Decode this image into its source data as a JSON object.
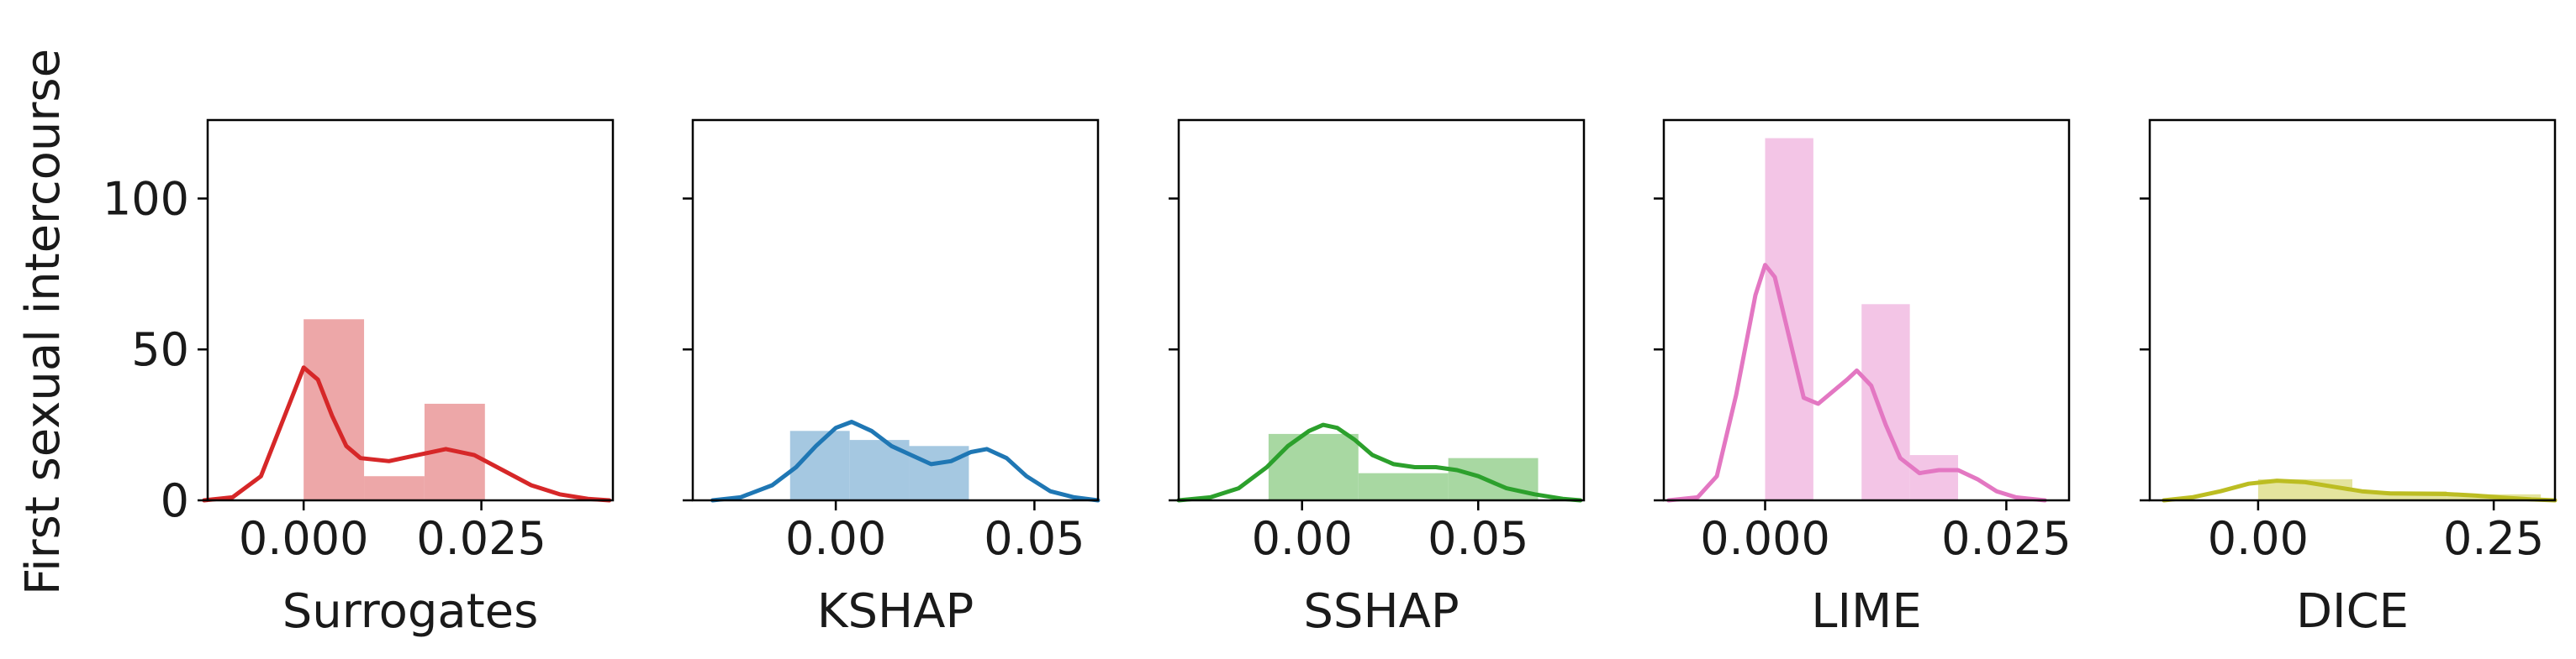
{
  "chart_data": {
    "type": "histogram-kde",
    "ylabel": "First sexual intercourse",
    "ylim": [
      0,
      126
    ],
    "yticks": [
      0,
      50,
      100
    ],
    "ytick_labels": [
      "0",
      "50",
      "100"
    ],
    "sharey": true,
    "panels": [
      {
        "xlabel": "Surrogates",
        "color": "#d62728",
        "bar_color": "#eda7a8",
        "xlim": [
          -0.0135,
          0.0435
        ],
        "xticks": [
          0.0,
          0.025
        ],
        "xtick_labels": [
          "0.000",
          "0.025"
        ],
        "bins": [
          {
            "x0": 0.0,
            "x1": 0.0085,
            "count": 60
          },
          {
            "x0": 0.0085,
            "x1": 0.017,
            "count": 8
          },
          {
            "x0": 0.017,
            "x1": 0.0255,
            "count": 32
          }
        ],
        "kde": [
          [
            -0.014,
            0
          ],
          [
            -0.01,
            1
          ],
          [
            -0.006,
            8
          ],
          [
            -0.003,
            26
          ],
          [
            0.0,
            44
          ],
          [
            0.002,
            40
          ],
          [
            0.004,
            28
          ],
          [
            0.006,
            18
          ],
          [
            0.008,
            14
          ],
          [
            0.012,
            13
          ],
          [
            0.016,
            15
          ],
          [
            0.02,
            17
          ],
          [
            0.024,
            15
          ],
          [
            0.028,
            10
          ],
          [
            0.032,
            5
          ],
          [
            0.036,
            2
          ],
          [
            0.04,
            0.5
          ],
          [
            0.043,
            0
          ]
        ]
      },
      {
        "xlabel": "KSHAP",
        "color": "#1f77b4",
        "bar_color": "#a5c8e1",
        "xlim": [
          -0.036,
          0.066
        ],
        "xticks": [
          0.0,
          0.05
        ],
        "xtick_labels": [
          "0.00",
          "0.05"
        ],
        "bins": [
          {
            "x0": -0.0115,
            "x1": 0.0035,
            "count": 23
          },
          {
            "x0": 0.0035,
            "x1": 0.0185,
            "count": 20
          },
          {
            "x0": 0.0185,
            "x1": 0.0335,
            "count": 18
          }
        ],
        "kde": [
          [
            -0.031,
            0
          ],
          [
            -0.024,
            1
          ],
          [
            -0.016,
            5
          ],
          [
            -0.01,
            11
          ],
          [
            -0.005,
            18
          ],
          [
            0.0,
            24
          ],
          [
            0.004,
            26
          ],
          [
            0.009,
            23
          ],
          [
            0.014,
            18
          ],
          [
            0.019,
            15
          ],
          [
            0.024,
            12
          ],
          [
            0.029,
            13
          ],
          [
            0.034,
            16
          ],
          [
            0.038,
            17
          ],
          [
            0.043,
            14
          ],
          [
            0.048,
            8
          ],
          [
            0.054,
            3
          ],
          [
            0.06,
            1
          ],
          [
            0.066,
            0
          ]
        ]
      },
      {
        "xlabel": "SSHAP",
        "color": "#2ca02c",
        "bar_color": "#a8d8a2",
        "xlim": [
          -0.035,
          0.08
        ],
        "xticks": [
          0.0,
          0.05
        ],
        "xtick_labels": [
          "0.00",
          "0.05"
        ],
        "bins": [
          {
            "x0": -0.0095,
            "x1": 0.016,
            "count": 22
          },
          {
            "x0": 0.016,
            "x1": 0.0415,
            "count": 9
          },
          {
            "x0": 0.0415,
            "x1": 0.067,
            "count": 14
          }
        ],
        "kde": [
          [
            -0.035,
            0
          ],
          [
            -0.026,
            1
          ],
          [
            -0.018,
            4
          ],
          [
            -0.01,
            11
          ],
          [
            -0.004,
            18
          ],
          [
            0.002,
            23
          ],
          [
            0.006,
            25
          ],
          [
            0.01,
            24
          ],
          [
            0.015,
            20
          ],
          [
            0.02,
            15
          ],
          [
            0.026,
            12
          ],
          [
            0.032,
            11
          ],
          [
            0.038,
            11
          ],
          [
            0.044,
            10
          ],
          [
            0.05,
            8
          ],
          [
            0.058,
            4
          ],
          [
            0.066,
            2
          ],
          [
            0.074,
            0.5
          ],
          [
            0.079,
            0
          ]
        ]
      },
      {
        "xlabel": "LIME",
        "color": "#e377c2",
        "bar_color": "#f3c5e6",
        "xlim": [
          -0.0105,
          0.0315
        ],
        "xticks": [
          0.0,
          0.025
        ],
        "xtick_labels": [
          "0.000",
          "0.025"
        ],
        "bins": [
          {
            "x0": 0.0,
            "x1": 0.005,
            "count": 120
          },
          {
            "x0": 0.005,
            "x1": 0.01,
            "count": 0
          },
          {
            "x0": 0.01,
            "x1": 0.015,
            "count": 65
          },
          {
            "x0": 0.015,
            "x1": 0.02,
            "count": 15
          }
        ],
        "kde": [
          [
            -0.01,
            0
          ],
          [
            -0.007,
            1
          ],
          [
            -0.005,
            8
          ],
          [
            -0.003,
            35
          ],
          [
            -0.001,
            68
          ],
          [
            0.0,
            78
          ],
          [
            0.001,
            74
          ],
          [
            0.0025,
            54
          ],
          [
            0.004,
            34
          ],
          [
            0.0055,
            32
          ],
          [
            0.007,
            36
          ],
          [
            0.0085,
            40
          ],
          [
            0.0095,
            43
          ],
          [
            0.011,
            38
          ],
          [
            0.0125,
            25
          ],
          [
            0.014,
            14
          ],
          [
            0.016,
            9
          ],
          [
            0.018,
            10
          ],
          [
            0.02,
            10
          ],
          [
            0.022,
            7
          ],
          [
            0.024,
            3
          ],
          [
            0.026,
            1
          ],
          [
            0.029,
            0
          ]
        ]
      },
      {
        "xlabel": "DICE",
        "color": "#bcbd22",
        "bar_color": "#e4e49e",
        "xlim": [
          -0.115,
          0.315
        ],
        "xticks": [
          0.0,
          0.25
        ],
        "xtick_labels": [
          "0.00",
          "0.25"
        ],
        "bins": [
          {
            "x0": 0.0,
            "x1": 0.1,
            "count": 7
          },
          {
            "x0": 0.1,
            "x1": 0.2,
            "count": 3
          },
          {
            "x0": 0.2,
            "x1": 0.3,
            "count": 2
          }
        ],
        "kde": [
          [
            -0.1,
            0
          ],
          [
            -0.07,
            1
          ],
          [
            -0.04,
            3
          ],
          [
            -0.01,
            5.5
          ],
          [
            0.02,
            6.5
          ],
          [
            0.05,
            6
          ],
          [
            0.08,
            4.5
          ],
          [
            0.11,
            3
          ],
          [
            0.14,
            2.3
          ],
          [
            0.17,
            2.2
          ],
          [
            0.2,
            2.1
          ],
          [
            0.23,
            1.6
          ],
          [
            0.26,
            0.9
          ],
          [
            0.29,
            0.3
          ],
          [
            0.315,
            0
          ]
        ]
      }
    ]
  }
}
